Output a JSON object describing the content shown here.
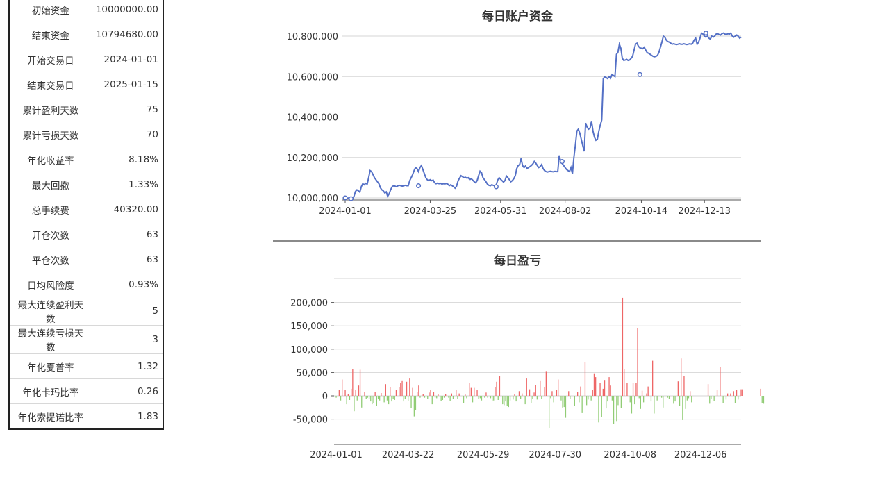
{
  "stats": [
    {
      "label": "初始资金",
      "value": "10000000.00"
    },
    {
      "label": "结束资金",
      "value": "10794680.00"
    },
    {
      "label": "开始交易日",
      "value": "2024-01-01"
    },
    {
      "label": "结束交易日",
      "value": "2025-01-15"
    },
    {
      "label": "累计盈利天数",
      "value": "75"
    },
    {
      "label": "累计亏损天数",
      "value": "70"
    },
    {
      "label": "年化收益率",
      "value": "8.18%"
    },
    {
      "label": "最大回撤",
      "value": "1.33%"
    },
    {
      "label": "总手续费",
      "value": "40320.00"
    },
    {
      "label": "开仓次数",
      "value": "63"
    },
    {
      "label": "平仓次数",
      "value": "63"
    },
    {
      "label": "日均风险度",
      "value": "0.93%"
    },
    {
      "label": "最大连续盈利天数",
      "value": "5"
    },
    {
      "label": "最大连续亏损天数",
      "value": "3"
    },
    {
      "label": "年化夏普率",
      "value": "1.32"
    },
    {
      "label": "年化卡玛比率",
      "value": "0.26"
    },
    {
      "label": "年化索提诺比率",
      "value": "1.83"
    }
  ],
  "chart_data": [
    {
      "type": "line",
      "title": "每日账户资金",
      "ylim": [
        10000000,
        10800000
      ],
      "yticks": [
        10000000,
        10200000,
        10400000,
        10600000,
        10800000
      ],
      "ytick_labels": [
        "10,000,000",
        "10,200,000",
        "10,400,000",
        "10,600,000",
        "10,800,000"
      ],
      "xtick_labels": [
        "2024-01-01",
        "2024-03-25",
        "2024-05-31",
        "2024-08-02",
        "2024-10-14",
        "2024-12-13"
      ],
      "x_range": [
        0,
        270
      ],
      "xtick_positions": [
        0,
        58,
        106,
        150,
        202,
        245
      ],
      "color": "#5470c6",
      "series": [
        {
          "values": [
            10000000,
            10000000,
            9998000,
            10003000,
            10000000,
            9996000,
            10008000,
            10032000,
            10040000,
            10035000,
            10028000,
            10055000,
            10070000,
            10065000,
            10072000,
            10068000,
            10100000,
            10135000,
            10130000,
            10115000,
            10100000,
            10090000,
            10080000,
            10070000,
            10050000,
            10040000,
            10035000,
            10025000,
            10030000,
            10008000,
            10020000,
            10040000,
            10055000,
            10060000,
            10058000,
            10055000,
            10060000,
            10062000,
            10060000,
            10058000,
            10060000,
            10062000,
            10060000,
            10060000,
            10085000,
            10100000,
            10115000,
            10135000,
            10150000,
            10145000,
            10130000,
            10150000,
            10160000,
            10140000,
            10120000,
            10100000,
            10090000,
            10085000,
            10090000,
            10085000,
            10088000,
            10075000,
            10070000,
            10073000,
            10070000,
            10072000,
            10068000,
            10070000,
            10069000,
            10071000,
            10068000,
            10060000,
            10065000,
            10060000,
            10055000,
            10048000,
            10058000,
            10085000,
            10098000,
            10110000,
            10105000,
            10100000,
            10102000,
            10098000,
            10100000,
            10090000,
            10095000,
            10088000,
            10080000,
            10075000,
            10085000,
            10110000,
            10132000,
            10125000,
            10100000,
            10090000,
            10080000,
            10068000,
            10062000,
            10060000,
            10065000,
            10062000,
            10060000,
            10064000,
            10088000,
            10100000,
            10092000,
            10085000,
            10078000,
            10086000,
            10108000,
            10100000,
            10090000,
            10080000,
            10086000,
            10095000,
            10110000,
            10145000,
            10160000,
            10165000,
            10195000,
            10160000,
            10150000,
            10158000,
            10145000,
            10150000,
            10155000,
            10160000,
            10168000,
            10180000,
            10172000,
            10160000,
            10150000,
            10155000,
            10165000,
            10145000,
            10135000,
            10130000,
            10128000,
            10130000,
            10132000,
            10130000,
            10129000,
            10131000,
            10130000,
            10130000,
            10210000,
            10180000,
            10170000,
            10160000,
            10150000,
            10140000,
            10135000,
            10130000,
            10150000,
            10120000,
            10200000,
            10260000,
            10330000,
            10340000,
            10320000,
            10290000,
            10260000,
            10230000,
            10370000,
            10350000,
            10340000,
            10345000,
            10380000,
            10330000,
            10300000,
            10285000,
            10290000,
            10330000,
            10360000,
            10385000,
            10590000,
            10598000,
            10595000,
            10590000,
            10600000,
            10592000,
            10610000,
            10605000,
            10600000,
            10710000,
            10720000,
            10760000,
            10740000,
            10690000,
            10680000,
            10682000,
            10685000,
            10680000,
            10682000,
            10690000,
            10700000,
            10730000,
            10760000,
            10765000,
            10750000,
            10742000,
            10740000,
            10738000,
            10745000,
            10730000,
            10718000,
            10715000,
            10710000,
            10705000,
            10700000,
            10698000,
            10700000,
            10705000,
            10720000,
            10745000,
            10770000,
            10800000,
            10795000,
            10780000,
            10773000,
            10770000,
            10765000,
            10760000,
            10762000,
            10760000,
            10758000,
            10760000,
            10762000,
            10760000,
            10760000,
            10762000,
            10760000,
            10758000,
            10760000,
            10762000,
            10760000,
            10765000,
            10780000,
            10790000,
            10760000,
            10770000,
            10790000,
            10815000,
            10810000,
            10800000,
            10795000,
            10800000,
            10790000,
            10785000,
            10800000,
            10795000,
            10800000,
            10810000,
            10812000,
            10808000,
            10805000,
            10812000,
            10815000,
            10810000,
            10808000,
            10812000,
            10810000,
            10815000,
            10800000,
            10795000,
            10800000,
            10805000,
            10800000,
            10790000,
            10795000
          ]
        }
      ],
      "markers": [
        [
          0,
          10000000
        ],
        [
          4,
          9996000
        ],
        [
          50,
          10060000
        ],
        [
          103,
          10055000
        ],
        [
          148,
          10180000
        ],
        [
          201,
          10610000
        ],
        [
          246,
          10815000
        ]
      ]
    },
    {
      "type": "bar",
      "title": "每日盈亏",
      "ylim": [
        -100000,
        250000
      ],
      "yticks": [
        -50000,
        0,
        50000,
        100000,
        150000,
        200000
      ],
      "ytick_labels": [
        "-50,000",
        "0",
        "50,000",
        "100,000",
        "150,000",
        "200,000"
      ],
      "xtick_labels": [
        "2024-01-01",
        "2024-03-22",
        "2024-05-29",
        "2024-07-30",
        "2024-10-08",
        "2024-12-06"
      ],
      "x_range": [
        0,
        270
      ],
      "xtick_positions": [
        0,
        48,
        98,
        146,
        196,
        243
      ],
      "positive_color": "#ee6666",
      "negative_color": "#91cc75",
      "values": [
        -4000,
        0,
        13000,
        -10000,
        35000,
        0,
        13000,
        -18000,
        3000,
        -9000,
        15000,
        57000,
        -33000,
        13000,
        -10000,
        22000,
        56000,
        -25000,
        0,
        8000,
        -6000,
        -4000,
        -7000,
        -12000,
        -18000,
        -15000,
        8000,
        -22000,
        -6000,
        -10000,
        6000,
        0,
        -14000,
        25000,
        -10000,
        -18000,
        18000,
        -12000,
        -6000,
        -9000,
        12000,
        0,
        18000,
        28000,
        33000,
        -12000,
        -7000,
        30000,
        -11000,
        37000,
        -26000,
        17000,
        -44000,
        -30000,
        8000,
        22000,
        -4000,
        0,
        4000,
        -4000,
        0,
        -7000,
        7000,
        12000,
        -18000,
        8000,
        -4000,
        -5000,
        4000,
        0,
        -11000,
        -9000,
        -4000,
        4000,
        0,
        -4000,
        -11000,
        5000,
        -6000,
        0,
        12000,
        -7000,
        5000,
        0,
        0,
        -16000,
        4000,
        -5000,
        0,
        28000,
        17000,
        -14000,
        17000,
        0,
        12000,
        -6000,
        -5000,
        -10000,
        0,
        -4000,
        7000,
        -4000,
        0,
        -5000,
        -11000,
        -10000,
        18000,
        30000,
        -9000,
        43000,
        0,
        -18000,
        -20000,
        -12000,
        -22000,
        -24000,
        -10000,
        0,
        -8000,
        4000,
        -12000,
        0,
        10000,
        -7000,
        5000,
        0,
        -18000,
        37000,
        0,
        14000,
        -16000,
        -6000,
        7000,
        23000,
        -8000,
        0,
        33000,
        -7000,
        0,
        18000,
        53000,
        0,
        -70000,
        -5000,
        10000,
        -14000,
        0,
        12000,
        35000,
        0,
        -10000,
        -25000,
        -24000,
        -47000,
        0,
        10000,
        -6000,
        0,
        0,
        -22000,
        0,
        8000,
        -14000,
        20000,
        -37000,
        0,
        72000,
        -20000,
        -8000,
        0,
        -10000,
        12000,
        48000,
        40000,
        0,
        -57000,
        27000,
        -46000,
        15000,
        34000,
        -27000,
        -12000,
        40000,
        22000,
        -10000,
        -60000,
        0,
        -54000,
        -20000,
        0,
        -26000,
        210000,
        57000,
        0,
        28000,
        0,
        -14000,
        -38000,
        27000,
        -18000,
        28000,
        145000,
        -5000,
        -28000,
        11000,
        -14000,
        0,
        5000,
        20000,
        0,
        -12000,
        75000,
        -38000,
        0,
        -10000,
        0,
        0,
        -4000,
        -25000,
        0,
        0,
        -4000,
        -7000,
        0,
        0,
        -17000,
        -12000,
        0,
        31000,
        -22000,
        80000,
        -52000,
        42000,
        -28000,
        -10000,
        -5000,
        10000,
        -14000,
        0,
        0,
        0,
        0,
        0,
        0,
        0,
        0,
        0,
        0,
        25000,
        -17000,
        -6000,
        0,
        -11000,
        0,
        12000,
        0,
        62000,
        0,
        -15000,
        0,
        -8000,
        5000,
        0,
        5000,
        0,
        10000,
        -15000,
        13000,
        -8000,
        0,
        14000,
        14000,
        0,
        0,
        0,
        0,
        0,
        0,
        0,
        0,
        0,
        0,
        0,
        15000,
        -16000,
        -17000
      ]
    }
  ]
}
